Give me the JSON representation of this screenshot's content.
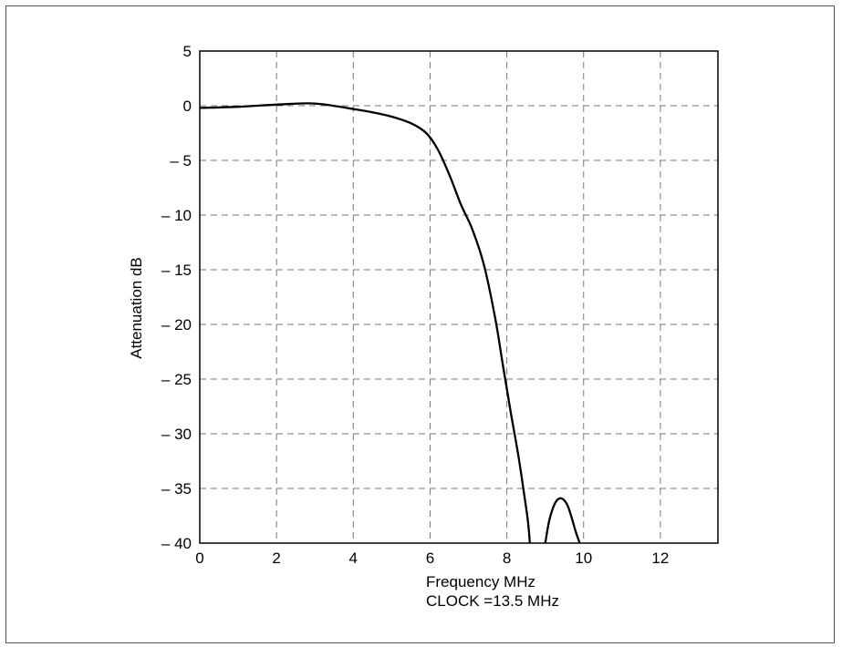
{
  "chart_data": {
    "type": "line",
    "title": "",
    "xlabel": "Frequency MHz",
    "xlabel_line2": "CLOCK =13.5 MHz",
    "ylabel": "Attenuation dB",
    "xlim": [
      0,
      13.5
    ],
    "ylim": [
      -40,
      5
    ],
    "xticks": [
      0,
      2,
      4,
      6,
      8,
      10,
      12
    ],
    "yticks": [
      5,
      0,
      -5,
      -10,
      -15,
      -20,
      -25,
      -30,
      -35,
      -40
    ],
    "xtick_labels": [
      "0",
      "2",
      "4",
      "6",
      "8",
      "10",
      "12"
    ],
    "ytick_labels": [
      "5",
      "0",
      "– 5",
      "– 10",
      "– 15",
      "– 20",
      "– 25",
      "– 30",
      "– 35",
      "– 40"
    ],
    "grid": true,
    "grid_style": "dashed",
    "line_color": "#000000",
    "series": [
      {
        "segments": [
          {
            "x": [
              0,
              1,
              2,
              3,
              4,
              4.5,
              5,
              5.5,
              5.9,
              6.2,
              6.5,
              6.8,
              7.1,
              7.4,
              7.7,
              7.9,
              8.1,
              8.3,
              8.45,
              8.55,
              8.6
            ],
            "y": [
              -0.2,
              -0.1,
              0.1,
              0.2,
              -0.3,
              -0.6,
              -1.0,
              -1.6,
              -2.5,
              -4.0,
              -6.3,
              -9.0,
              -11.3,
              -14.5,
              -19.5,
              -23.8,
              -28.0,
              -32.0,
              -35.5,
              -38.0,
              -40
            ]
          },
          {
            "x": [
              9.0,
              9.1,
              9.2,
              9.3,
              9.4,
              9.5,
              9.6,
              9.7,
              9.8,
              9.9
            ],
            "y": [
              -40,
              -38.0,
              -36.8,
              -36.1,
              -35.9,
              -36.1,
              -36.7,
              -37.8,
              -39.0,
              -40
            ]
          }
        ]
      }
    ]
  }
}
